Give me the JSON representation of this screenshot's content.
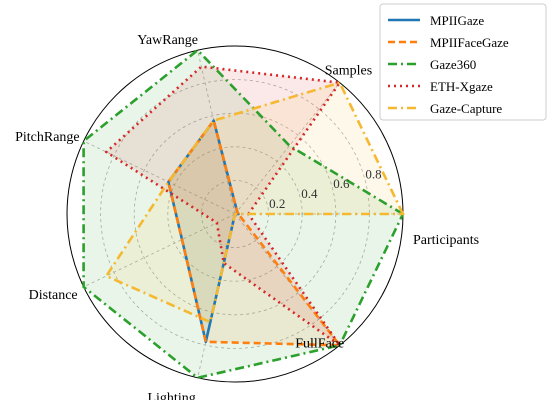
{
  "chart_data": {
    "type": "radar",
    "axes": [
      "Participants",
      "Samples",
      "YawRange",
      "PitchRange",
      "Distance",
      "Lighting",
      "FullFace"
    ],
    "rlim": [
      0,
      1
    ],
    "r_ticks": [
      0.2,
      0.4,
      0.6,
      0.8
    ],
    "r_tick_labels": [
      "0.2",
      "0.4",
      "0.6",
      "0.8"
    ],
    "grid": true,
    "legend_position": "top-right",
    "series": [
      {
        "name": "MPIIGaze",
        "color": "#1f77b4",
        "dash": "solid",
        "fill_opacity": 0.1,
        "values": [
          0.02,
          0.02,
          0.57,
          0.44,
          0.35,
          0.78,
          0.0
        ]
      },
      {
        "name": "MPIIFaceGaze",
        "color": "#ff7f0e",
        "dash": "dashed",
        "fill_opacity": 0.1,
        "values": [
          0.02,
          0.02,
          0.57,
          0.44,
          0.35,
          0.78,
          1.0
        ]
      },
      {
        "name": "Gaze360",
        "color": "#2ca02c",
        "dash": "dashdot",
        "fill_opacity": 0.1,
        "values": [
          1.0,
          0.52,
          1.0,
          1.0,
          1.0,
          1.0,
          1.0
        ]
      },
      {
        "name": "ETH-Xgaze",
        "color": "#d62728",
        "dash": "dotted",
        "fill_opacity": 0.1,
        "values": [
          0.08,
          1.0,
          0.9,
          0.85,
          0.12,
          0.3,
          1.0
        ]
      },
      {
        "name": "Gaze-Capture",
        "color": "#f5b82e",
        "dash": "dashdot",
        "fill_opacity": 0.1,
        "values": [
          1.0,
          1.0,
          0.57,
          0.44,
          0.85,
          0.66,
          0.0
        ]
      }
    ]
  }
}
